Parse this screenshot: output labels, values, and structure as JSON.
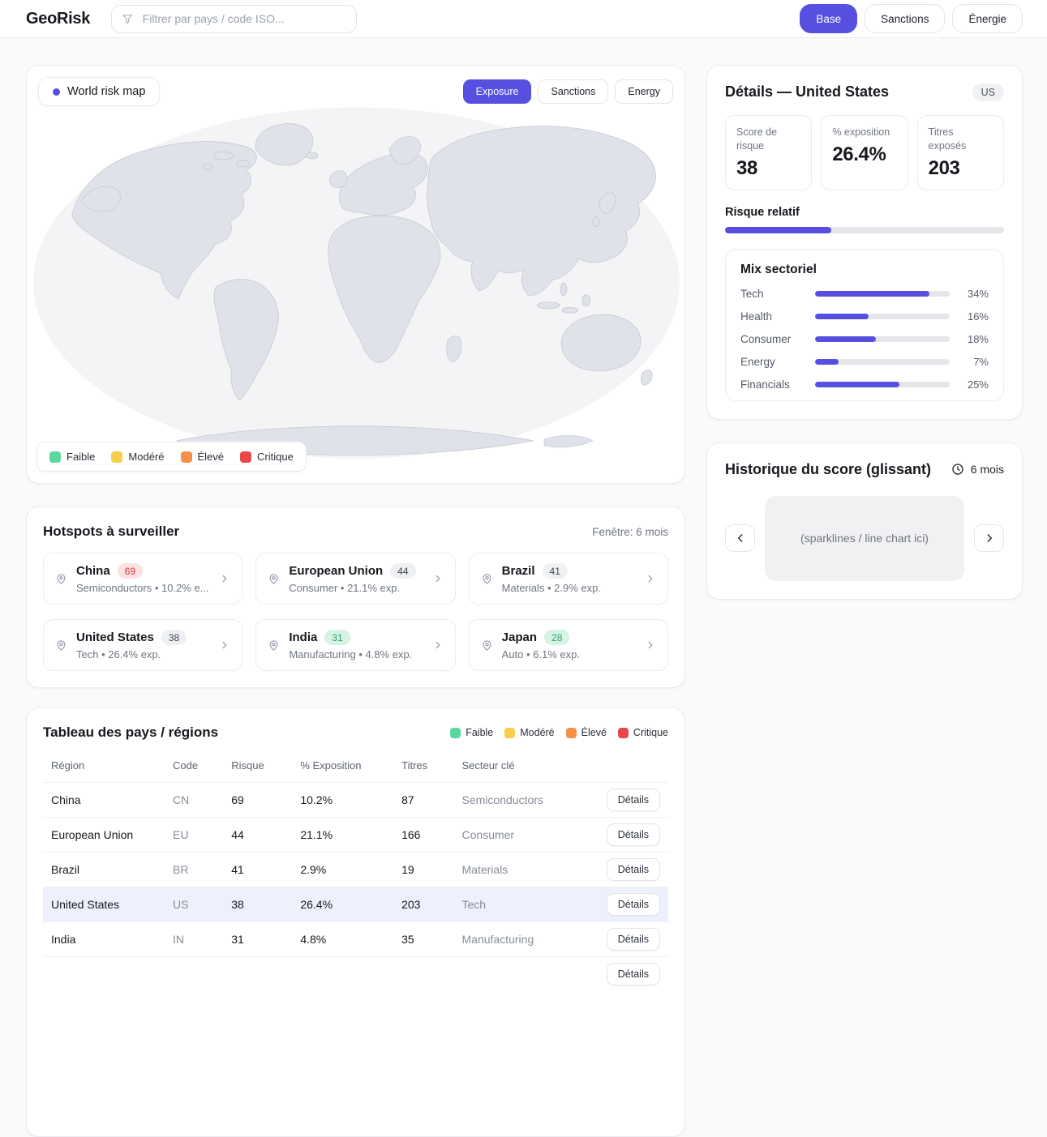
{
  "header": {
    "logo": "GeoRisk",
    "search_placeholder": "Filtrer par pays / code ISO...",
    "buttons": [
      {
        "label": "Base",
        "active": true
      },
      {
        "label": "Sanctions",
        "active": false
      },
      {
        "label": "Énergie",
        "active": false
      }
    ]
  },
  "map_card": {
    "badge_label": "World risk map",
    "layers": [
      {
        "label": "Exposure",
        "active": true
      },
      {
        "label": "Sanctions",
        "active": false
      },
      {
        "label": "Energy",
        "active": false
      }
    ]
  },
  "legend": [
    {
      "label": "Faible",
      "color": "#5bd8a2"
    },
    {
      "label": "Modéré",
      "color": "#f6ce4b"
    },
    {
      "label": "Élevé",
      "color": "#f5914a"
    },
    {
      "label": "Critique",
      "color": "#e84749"
    }
  ],
  "details": {
    "title": "Détails — United States",
    "badge": "US",
    "stats": [
      {
        "label": "Score de risque",
        "value": "38"
      },
      {
        "label": "% exposition",
        "value": "26.4%"
      },
      {
        "label": "Titres exposés",
        "value": "203"
      }
    ],
    "relative_risk": {
      "label": "Risque relatif",
      "percent": 38
    },
    "sector_mix": {
      "title": "Mix sectoriel",
      "scale_max": 40,
      "rows": [
        {
          "label": "Tech",
          "percent": 34
        },
        {
          "label": "Health",
          "percent": 16
        },
        {
          "label": "Consumer",
          "percent": 18
        },
        {
          "label": "Energy",
          "percent": 7
        },
        {
          "label": "Financials",
          "percent": 25
        }
      ]
    }
  },
  "history": {
    "title": "Historique du score (glissant)",
    "window": "6 mois",
    "placeholder": "(sparklines / line chart ici)"
  },
  "hotspots": {
    "title": "Hotspots à surveiller",
    "window_label": "Fenêtre: 6 mois",
    "items": [
      {
        "name": "China",
        "score": "69",
        "tone": "high",
        "subtitle": "Semiconductors • 10.2% e..."
      },
      {
        "name": "European Union",
        "score": "44",
        "tone": "mid",
        "subtitle": "Consumer • 21.1% exp."
      },
      {
        "name": "Brazil",
        "score": "41",
        "tone": "mid",
        "subtitle": "Materials • 2.9% exp."
      },
      {
        "name": "United States",
        "score": "38",
        "tone": "mid",
        "subtitle": "Tech • 26.4% exp."
      },
      {
        "name": "India",
        "score": "31",
        "tone": "low",
        "subtitle": "Manufacturing • 4.8% exp."
      },
      {
        "name": "Japan",
        "score": "28",
        "tone": "low",
        "subtitle": "Auto • 6.1% exp."
      }
    ]
  },
  "table": {
    "title": "Tableau des pays / régions",
    "columns": [
      "Région",
      "Code",
      "Risque",
      "% Exposition",
      "Titres",
      "Secteur clé"
    ],
    "action_label": "Détails",
    "rows": [
      {
        "region": "China",
        "code": "CN",
        "risk": "69",
        "exposure": "10.2%",
        "titres": "87",
        "sector": "Semiconductors",
        "highlight": false
      },
      {
        "region": "European Union",
        "code": "EU",
        "risk": "44",
        "exposure": "21.1%",
        "titres": "166",
        "sector": "Consumer",
        "highlight": false
      },
      {
        "region": "Brazil",
        "code": "BR",
        "risk": "41",
        "exposure": "2.9%",
        "titres": "19",
        "sector": "Materials",
        "highlight": false
      },
      {
        "region": "United States",
        "code": "US",
        "risk": "38",
        "exposure": "26.4%",
        "titres": "203",
        "sector": "Tech",
        "highlight": true
      },
      {
        "region": "India",
        "code": "IN",
        "risk": "31",
        "exposure": "4.8%",
        "titres": "35",
        "sector": "Manufacturing",
        "highlight": false
      },
      {
        "region": "",
        "code": "",
        "risk": "",
        "exposure": "",
        "titres": "",
        "sector": "",
        "highlight": false
      }
    ]
  },
  "colors": {
    "primary": "#564fe0",
    "row_highlight": "#edf0fd",
    "map_sea": "#f4f4f6",
    "map_land": "#dfe2e8",
    "badge_high_bg": "#fbe1e1",
    "badge_high_text": "#d43c3c",
    "badge_mid_bg": "#eff0f3",
    "badge_mid_text": "#404754",
    "badge_low_bg": "#d6f3e4",
    "badge_low_text": "#27a570"
  }
}
